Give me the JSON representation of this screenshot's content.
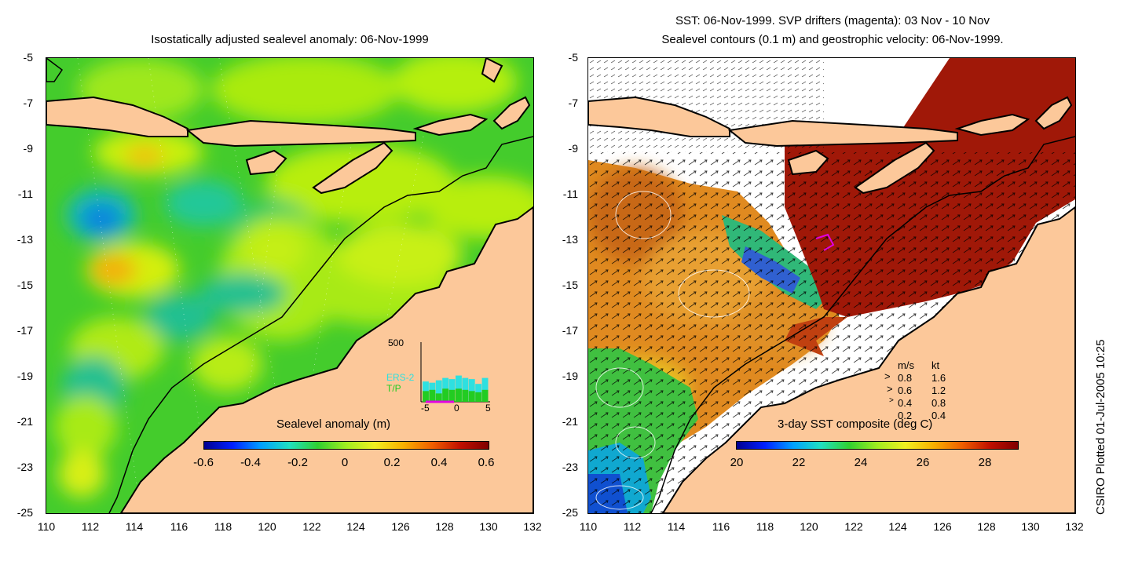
{
  "left_panel": {
    "title": "Isostatically adjusted sealevel anomaly: 06-Nov-1999",
    "yticks": [
      "-5",
      "-7",
      "-9",
      "-11",
      "-13",
      "-15",
      "-17",
      "-19",
      "-21",
      "-23",
      "-25"
    ],
    "xticks": [
      "110",
      "112",
      "114",
      "116",
      "118",
      "120",
      "122",
      "124",
      "126",
      "128",
      "130",
      "132"
    ],
    "colorbar": {
      "title": "Sealevel anomaly (m)",
      "labels": [
        "-0.6",
        "-0.4",
        "-0.2",
        "0",
        "0.2",
        "0.4",
        "0.6"
      ]
    },
    "inset": {
      "ymax_label": "500",
      "xticks": [
        "-5",
        "0",
        "5"
      ],
      "series": [
        "ERS-2",
        "T/P"
      ],
      "series_colors": [
        "#2ee0e0",
        "#22cc22"
      ],
      "ers2_counts": [
        0.34,
        0.32,
        0.36,
        0.4,
        0.38,
        0.44,
        0.4,
        0.38,
        0.3,
        0.4
      ],
      "tp_counts": [
        0.18,
        0.2,
        0.14,
        0.22,
        0.2,
        0.22,
        0.2,
        0.18,
        0.16,
        0.2
      ]
    }
  },
  "right_panel": {
    "title_line1": "SST: 06-Nov-1999. SVP drifters (magenta): 03 Nov - 10 Nov",
    "title_line2": "Sealevel contours (0.1 m) and geostrophic velocity: 06-Nov-1999.",
    "yticks": [
      "-5",
      "-7",
      "-9",
      "-11",
      "-13",
      "-15",
      "-17",
      "-19",
      "-21",
      "-23",
      "-25"
    ],
    "xticks": [
      "110",
      "112",
      "114",
      "116",
      "118",
      "120",
      "122",
      "124",
      "126",
      "128",
      "130",
      "132"
    ],
    "colorbar": {
      "title": "3-day SST composite (deg C)",
      "labels": [
        "20",
        "22",
        "24",
        "26",
        "28"
      ]
    },
    "velocity_legend": {
      "header_ms": "m/s",
      "header_kt": "kt",
      "rows": [
        {
          "ms": "0.8",
          "kt": "1.6"
        },
        {
          "ms": "0.6",
          "kt": "1.2"
        },
        {
          "ms": "0.4",
          "kt": "0.8"
        },
        {
          "ms": "0.2",
          "kt": "0.4"
        }
      ]
    }
  },
  "credit": "CSIRO Plotted 01-Jul-2005 10:25",
  "colors": {
    "land": "#fcc89a",
    "ocean_green": "#33cc33",
    "sst_warm": "#a01808",
    "sst_orange": "#e08a20",
    "coast": "#000000"
  }
}
